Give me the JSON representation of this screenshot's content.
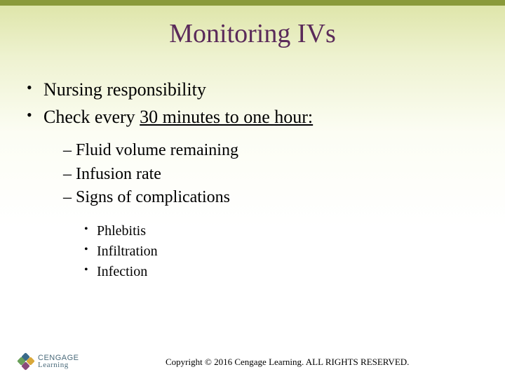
{
  "title": "Monitoring IVs",
  "bullets": {
    "l1a": "Nursing responsibility",
    "l1b_prefix": "Check every ",
    "l1b_underlined": "30 minutes to one hour:",
    "l2a": "– Fluid volume remaining",
    "l2b": "– Infusion rate",
    "l2c": "– Signs of complications",
    "l3a": "Phlebitis",
    "l3b": "Infiltration",
    "l3c": "Infection"
  },
  "logo": {
    "line1": "CENGAGE",
    "line2": "Learning"
  },
  "copyright": "Copyright © 2016 Cengage Learning. ALL RIGHTS RESERVED."
}
